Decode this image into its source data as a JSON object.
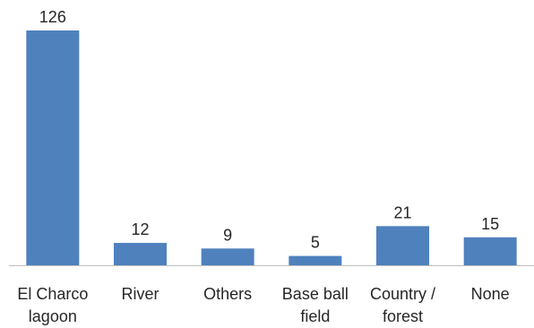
{
  "chart_data": {
    "type": "bar",
    "categories": [
      [
        "El Charco",
        "lagoon"
      ],
      [
        "River"
      ],
      [
        "Others"
      ],
      [
        "Base ball",
        "field"
      ],
      [
        "Country /",
        "forest"
      ],
      [
        "None"
      ]
    ],
    "values": [
      126,
      12,
      9,
      5,
      21,
      15
    ],
    "title": "",
    "xlabel": "",
    "ylabel": "",
    "ylim": [
      0,
      126
    ],
    "grid": false,
    "bar_color": "#4f81bd",
    "data_labels": true
  }
}
